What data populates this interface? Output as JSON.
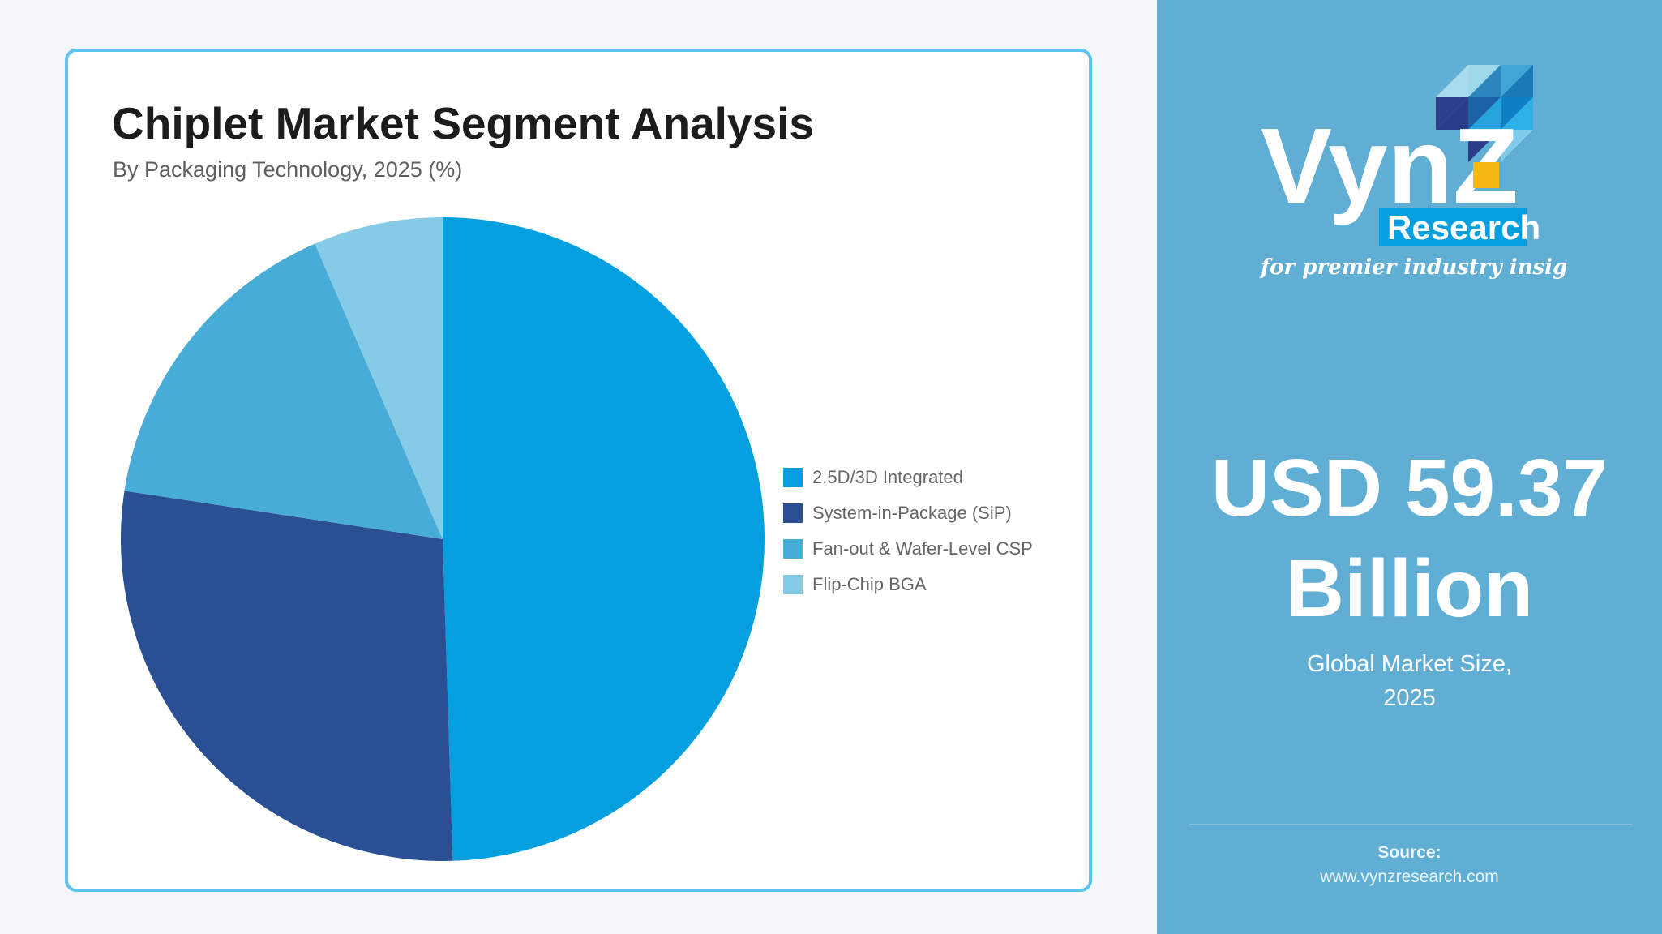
{
  "card": {
    "title": "Chiplet Market Segment Analysis",
    "subtitle": "By Packaging Technology, 2025 (%)"
  },
  "legend": [
    {
      "label": "2.5D/3D Integrated",
      "color": "#049fde"
    },
    {
      "label": "System-in-Package (SiP)",
      "color": "#2a4f92"
    },
    {
      "label": "Fan-out & Wafer-Level CSP",
      "color": "#48acd9"
    },
    {
      "label": "Flip-Chip BGA",
      "color": "#86cbe6"
    }
  ],
  "panel": {
    "logo": {
      "brand": "VynZ",
      "sub": "Research",
      "tagline": "for premier industry insights"
    },
    "value_line1": "USD 59.37",
    "value_line2": "Billion",
    "caption_line1": "Global Market Size,",
    "caption_line2": "2025",
    "source_label": "Source:",
    "source_url": "www.vynzresearch.com"
  },
  "colors": {
    "card_border": "#5bc4ef",
    "panel_bg": "#61aed4",
    "page_bg": "#f4f7fa",
    "logo_yellow": "#f5b914"
  },
  "chart_data": {
    "type": "pie",
    "title": "Chiplet Market Segment Analysis",
    "subtitle": "By Packaging Technology, 2025 (%)",
    "categories": [
      "2.5D/3D Integrated",
      "System-in-Package (SiP)",
      "Fan-out & Wafer-Level CSP",
      "Flip-Chip BGA"
    ],
    "values": [
      49.5,
      27.9,
      16.1,
      6.5
    ],
    "colors": [
      "#049fde",
      "#2a4f92",
      "#48acd9",
      "#86cbe6"
    ],
    "start_angle_deg": 0,
    "direction": "clockwise",
    "legend_position": "right"
  }
}
